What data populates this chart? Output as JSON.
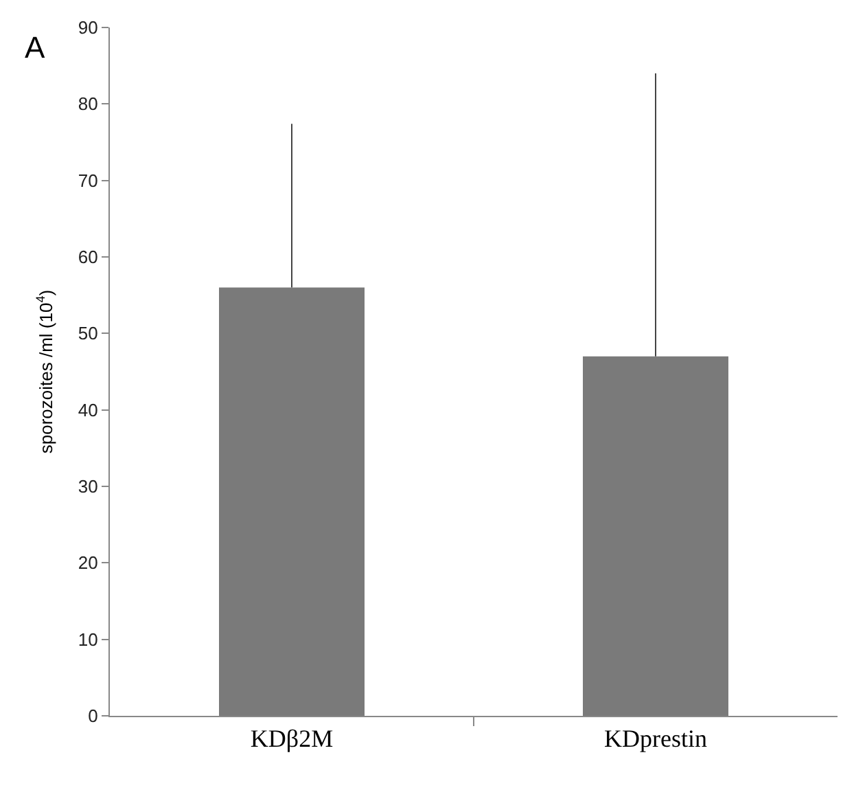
{
  "chart_data": {
    "type": "bar",
    "categories": [
      "KDβ2M",
      "KDprestin"
    ],
    "values": [
      56,
      47
    ],
    "color": "#7a7a7a",
    "errors": [
      [
        56,
        77.4
      ],
      [
        47,
        84
      ]
    ],
    "ylabel": "sporozoites /ml (10$^{4}$)",
    "ylim": [
      0,
      90
    ],
    "yticks": [
      0,
      10,
      20,
      30,
      40,
      50,
      60,
      70,
      80,
      90
    ],
    "annotations": [
      "A"
    ]
  }
}
